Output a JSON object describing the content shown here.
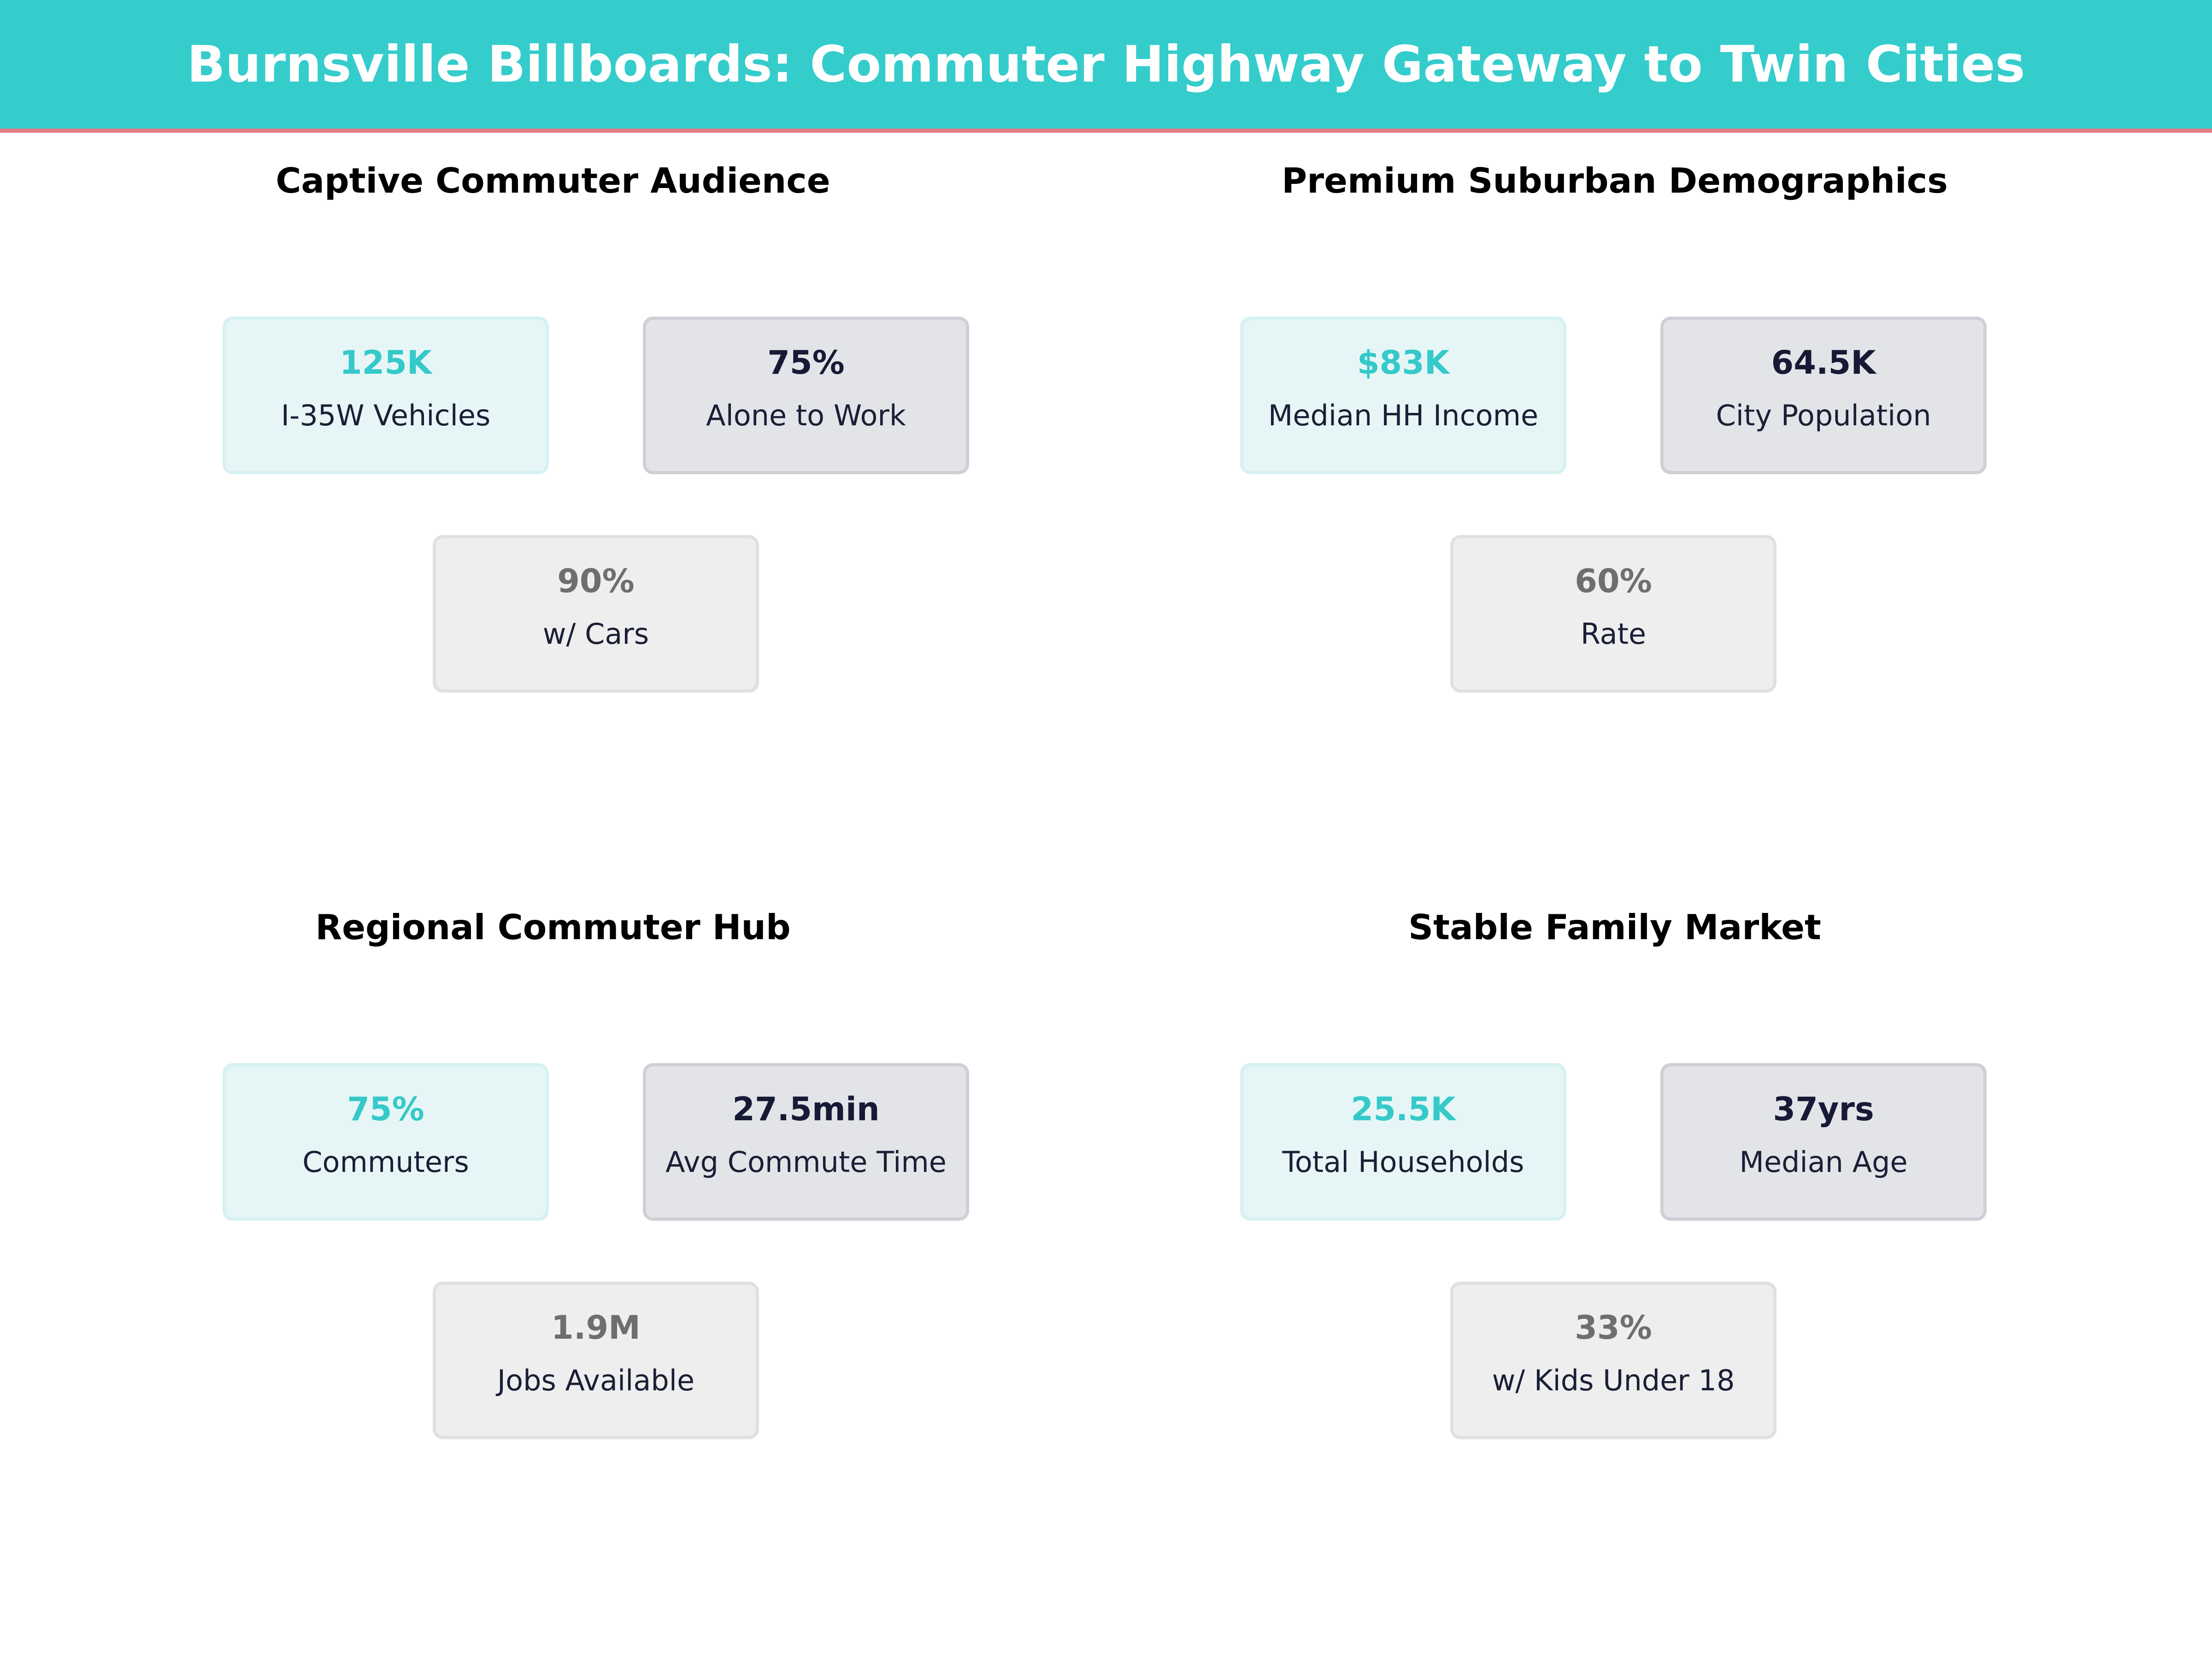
{
  "header": {
    "title": "Burnsville Billboards: Commuter Highway Gateway to Twin Cities"
  },
  "colors": {
    "accent": "#35cccc",
    "header_rule": "#e07c86",
    "primary_value": "#35c9c9",
    "secondary_value": "#161a35",
    "tertiary_value": "#6e6e6e"
  },
  "panels": [
    {
      "title": "Captive Commuter Audience",
      "cards": [
        {
          "value": "125K",
          "label": "I-35W Vehicles"
        },
        {
          "value": "75%",
          "label": "Alone to Work"
        },
        {
          "value": "90%",
          "label": "w/ Cars"
        }
      ]
    },
    {
      "title": "Premium Suburban Demographics",
      "cards": [
        {
          "value": "$83K",
          "label": "Median HH Income"
        },
        {
          "value": "64.5K",
          "label": "City Population"
        },
        {
          "value": "60%",
          "label": "Rate"
        }
      ]
    },
    {
      "title": "Regional Commuter Hub",
      "cards": [
        {
          "value": "75%",
          "label": "Commuters"
        },
        {
          "value": "27.5min",
          "label": "Avg Commute Time"
        },
        {
          "value": "1.9M",
          "label": "Jobs Available"
        }
      ]
    },
    {
      "title": "Stable Family Market",
      "cards": [
        {
          "value": "25.5K",
          "label": "Total Households"
        },
        {
          "value": "37yrs",
          "label": "Median Age"
        },
        {
          "value": "33%",
          "label": "w/ Kids Under 18"
        }
      ]
    }
  ]
}
